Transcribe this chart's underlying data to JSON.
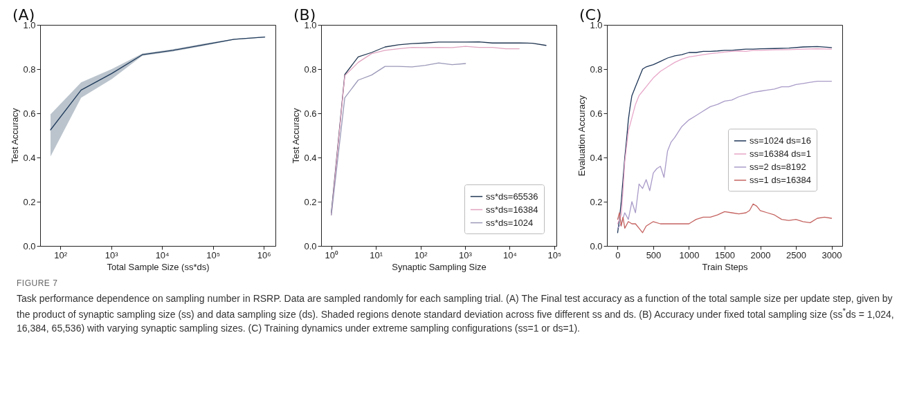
{
  "chart_data": [
    {
      "type": "line",
      "title": "(A)",
      "xlabel": "Total Sample Size (ss*ds)",
      "ylabel": "Test Accuracy",
      "log": "x",
      "xlim": [
        40,
        1700000
      ],
      "ylim": [
        0,
        1
      ],
      "xticks": [
        {
          "value": 100,
          "label": "10²"
        },
        {
          "value": 1000,
          "label": "10³"
        },
        {
          "value": 10000,
          "label": "10⁴"
        },
        {
          "value": 100000,
          "label": "10⁵"
        },
        {
          "value": 1000000,
          "label": "10⁶"
        }
      ],
      "yticks": [
        {
          "value": 0,
          "label": "0.0"
        },
        {
          "value": 0.2,
          "label": "0.2"
        },
        {
          "value": 0.4,
          "label": "0.4"
        },
        {
          "value": 0.6,
          "label": "0.6"
        },
        {
          "value": 0.8,
          "label": "0.8"
        },
        {
          "value": 1,
          "label": "1.0"
        }
      ],
      "legend": false,
      "x": [
        64,
        256,
        1024,
        4096,
        16384,
        65536,
        262144,
        1048576
      ],
      "series": [
        {
          "color": "#1f3a5a",
          "values": [
            0.525,
            0.705,
            0.78,
            0.865,
            0.885,
            0.91,
            0.935,
            0.945
          ],
          "lower": [
            0.405,
            0.67,
            0.755,
            0.86,
            0.88,
            0.905,
            0.933,
            0.943
          ],
          "upper": [
            0.595,
            0.74,
            0.8,
            0.87,
            0.89,
            0.915,
            0.937,
            0.947
          ]
        }
      ],
      "annotations": [
        "FIGURE 7",
        "Task performance dependence on sampling number in RSRP. Data are sampled randomly for each sampling trial. (A) The Final test accuracy as a function of the total sample size per update step, given by the product of synaptic sampling size (ss) and data sampling size (ds). Shaded regions denote standard deviation across five different ss and ds. (B) Accuracy under fixed total sampling size (ss$^{*}$ds = 1,024, 16,384, 65,536) with varying synaptic sampling sizes. (C) Training dynamics under extreme sampling configurations (ss=1 or ds=1)."
      ]
    },
    {
      "type": "line",
      "title": "(B)",
      "xlabel": "Synaptic Sampling Size",
      "ylabel": "Test Accuracy",
      "log": "x",
      "xlim": [
        0.59,
        112000
      ],
      "ylim": [
        0,
        1
      ],
      "xticks": [
        {
          "value": 1,
          "label": "10⁰"
        },
        {
          "value": 10,
          "label": "10¹"
        },
        {
          "value": 100,
          "label": "10²"
        },
        {
          "value": 1000,
          "label": "10³"
        },
        {
          "value": 10000,
          "label": "10⁴"
        },
        {
          "value": 100000,
          "label": "10⁵"
        }
      ],
      "yticks": [
        {
          "value": 0,
          "label": "0.0"
        },
        {
          "value": 0.2,
          "label": "0.2"
        },
        {
          "value": 0.4,
          "label": "0.4"
        },
        {
          "value": 0.6,
          "label": "0.6"
        },
        {
          "value": 0.8,
          "label": "0.8"
        },
        {
          "value": 1,
          "label": "1.0"
        }
      ],
      "legend": "bottom right",
      "x": [
        1,
        2,
        4,
        8,
        16,
        32,
        64,
        128,
        256,
        512,
        1024,
        2048,
        4096,
        8192,
        16384,
        32768,
        65536
      ],
      "series": [
        {
          "name": "ss*ds=65536",
          "color": "#1f3550",
          "values": [
            0.15,
            0.775,
            0.855,
            0.875,
            0.9,
            0.91,
            0.915,
            0.918,
            0.922,
            0.922,
            0.922,
            0.923,
            0.918,
            0.918,
            0.918,
            0.917,
            0.907
          ]
        },
        {
          "name": "ss*ds=16384",
          "color": "#e0a3bf",
          "x": [
            1,
            2,
            4,
            8,
            16,
            32,
            64,
            128,
            256,
            512,
            1024,
            2048,
            4096,
            8192,
            16384
          ],
          "values": [
            0.14,
            0.77,
            0.83,
            0.87,
            0.885,
            0.892,
            0.898,
            0.897,
            0.898,
            0.897,
            0.903,
            0.898,
            0.898,
            0.892,
            0.892
          ]
        },
        {
          "name": "ss*ds=1024",
          "color": "#9a98b8",
          "x": [
            1,
            2,
            4,
            8,
            16,
            32,
            64,
            128,
            256,
            512,
            1024
          ],
          "values": [
            0.14,
            0.67,
            0.75,
            0.773,
            0.812,
            0.812,
            0.81,
            0.817,
            0.828,
            0.82,
            0.825
          ]
        }
      ]
    },
    {
      "type": "line",
      "title": "(C)",
      "xlabel": "Train Steps",
      "ylabel": "Evaluation Accuracy",
      "xlim": [
        -150,
        3150
      ],
      "ylim": [
        0,
        1
      ],
      "xticks": [
        0,
        500,
        1000,
        1500,
        2000,
        2500,
        3000
      ],
      "yticks": [
        {
          "value": 0,
          "label": "0.0"
        },
        {
          "value": 0.2,
          "label": "0.2"
        },
        {
          "value": 0.4,
          "label": "0.4"
        },
        {
          "value": 0.6,
          "label": "0.6"
        },
        {
          "value": 0.8,
          "label": "0.8"
        },
        {
          "value": 1,
          "label": "1.0"
        }
      ],
      "legend": "center right",
      "series": [
        {
          "name": "ss=1024 ds=16",
          "color": "#1d3557",
          "x": [
            0,
            25,
            50,
            75,
            100,
            125,
            150,
            175,
            200,
            225,
            250,
            300,
            350,
            400,
            450,
            500,
            600,
            700,
            800,
            900,
            1000,
            1100,
            1200,
            1300,
            1400,
            1500,
            1600,
            1700,
            1800,
            1900,
            2000,
            2200,
            2400,
            2600,
            2800,
            3000
          ],
          "values": [
            0.06,
            0.12,
            0.2,
            0.3,
            0.4,
            0.48,
            0.57,
            0.63,
            0.68,
            0.7,
            0.72,
            0.76,
            0.8,
            0.81,
            0.815,
            0.82,
            0.835,
            0.85,
            0.86,
            0.865,
            0.875,
            0.875,
            0.88,
            0.88,
            0.882,
            0.885,
            0.885,
            0.888,
            0.89,
            0.89,
            0.892,
            0.893,
            0.895,
            0.9,
            0.902,
            0.897
          ]
        },
        {
          "name": "ss=16384 ds=1",
          "color": "#e7a6c8",
          "x": [
            0,
            50,
            75,
            100,
            125,
            150,
            175,
            200,
            250,
            300,
            350,
            400,
            450,
            500,
            600,
            700,
            800,
            900,
            1000,
            1100,
            1200,
            1300,
            1400,
            1500,
            1600,
            1700,
            1800,
            1900,
            2000,
            2200,
            2400,
            2600,
            2800,
            3000
          ],
          "values": [
            0.1,
            0.14,
            0.25,
            0.38,
            0.45,
            0.52,
            0.55,
            0.58,
            0.64,
            0.68,
            0.7,
            0.72,
            0.74,
            0.76,
            0.79,
            0.81,
            0.83,
            0.845,
            0.855,
            0.86,
            0.865,
            0.87,
            0.873,
            0.877,
            0.88,
            0.882,
            0.88,
            0.885,
            0.885,
            0.887,
            0.888,
            0.89,
            0.892,
            0.89
          ]
        },
        {
          "name": "ss=2 ds=8192",
          "color": "#a99bc8",
          "x": [
            0,
            50,
            100,
            150,
            200,
            250,
            300,
            350,
            400,
            450,
            500,
            550,
            600,
            650,
            700,
            750,
            800,
            900,
            1000,
            1100,
            1200,
            1300,
            1400,
            1500,
            1600,
            1700,
            1800,
            1900,
            2000,
            2100,
            2200,
            2300,
            2400,
            2500,
            2600,
            2700,
            2800,
            2900,
            3000
          ],
          "values": [
            0.08,
            0.1,
            0.15,
            0.12,
            0.2,
            0.15,
            0.28,
            0.26,
            0.3,
            0.25,
            0.33,
            0.35,
            0.36,
            0.31,
            0.43,
            0.47,
            0.49,
            0.54,
            0.57,
            0.59,
            0.61,
            0.63,
            0.64,
            0.655,
            0.66,
            0.675,
            0.685,
            0.695,
            0.7,
            0.705,
            0.71,
            0.72,
            0.72,
            0.73,
            0.735,
            0.74,
            0.745,
            0.745,
            0.745
          ]
        },
        {
          "name": "ss=1 ds=16384",
          "color": "#c4625f",
          "x": [
            0,
            25,
            50,
            75,
            100,
            150,
            200,
            250,
            300,
            350,
            400,
            450,
            500,
            600,
            700,
            800,
            900,
            1000,
            1050,
            1100,
            1200,
            1300,
            1400,
            1500,
            1600,
            1700,
            1800,
            1850,
            1900,
            1950,
            2000,
            2100,
            2200,
            2300,
            2400,
            2500,
            2600,
            2700,
            2800,
            2900,
            3000
          ],
          "values": [
            0.12,
            0.15,
            0.09,
            0.13,
            0.08,
            0.11,
            0.1,
            0.1,
            0.08,
            0.06,
            0.09,
            0.1,
            0.11,
            0.1,
            0.1,
            0.1,
            0.1,
            0.1,
            0.11,
            0.12,
            0.13,
            0.13,
            0.14,
            0.155,
            0.15,
            0.145,
            0.15,
            0.16,
            0.19,
            0.18,
            0.16,
            0.15,
            0.14,
            0.12,
            0.115,
            0.12,
            0.11,
            0.105,
            0.125,
            0.13,
            0.125
          ]
        }
      ]
    }
  ]
}
